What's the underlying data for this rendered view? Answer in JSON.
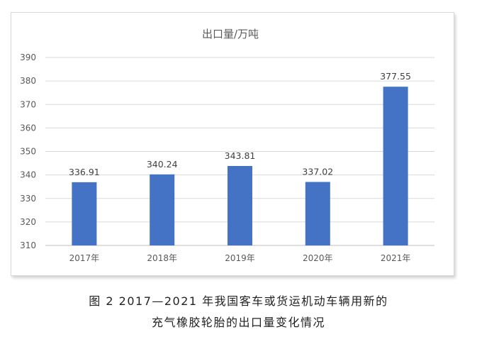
{
  "chart_data": {
    "type": "bar",
    "title": "出口量/万吨",
    "categories": [
      "2017年",
      "2018年",
      "2019年",
      "2020年",
      "2021年"
    ],
    "values": [
      336.91,
      340.24,
      343.81,
      337.02,
      377.55
    ],
    "data_labels": [
      "336.91",
      "340.24",
      "343.81",
      "337.02",
      "377.55"
    ],
    "ylim": [
      310,
      390
    ],
    "yticks": [
      "310",
      "320",
      "330",
      "340",
      "350",
      "360",
      "370",
      "380",
      "390"
    ],
    "xlabel": "",
    "ylabel": "",
    "grid": true,
    "bar_color": "#4472c4",
    "grid_color": "#d9d9d9"
  },
  "caption": {
    "line1": "图 2  2017—2021 年我国客车或货运机动车辆用新的",
    "line2": "充气橡胶轮胎的出口量变化情况"
  }
}
